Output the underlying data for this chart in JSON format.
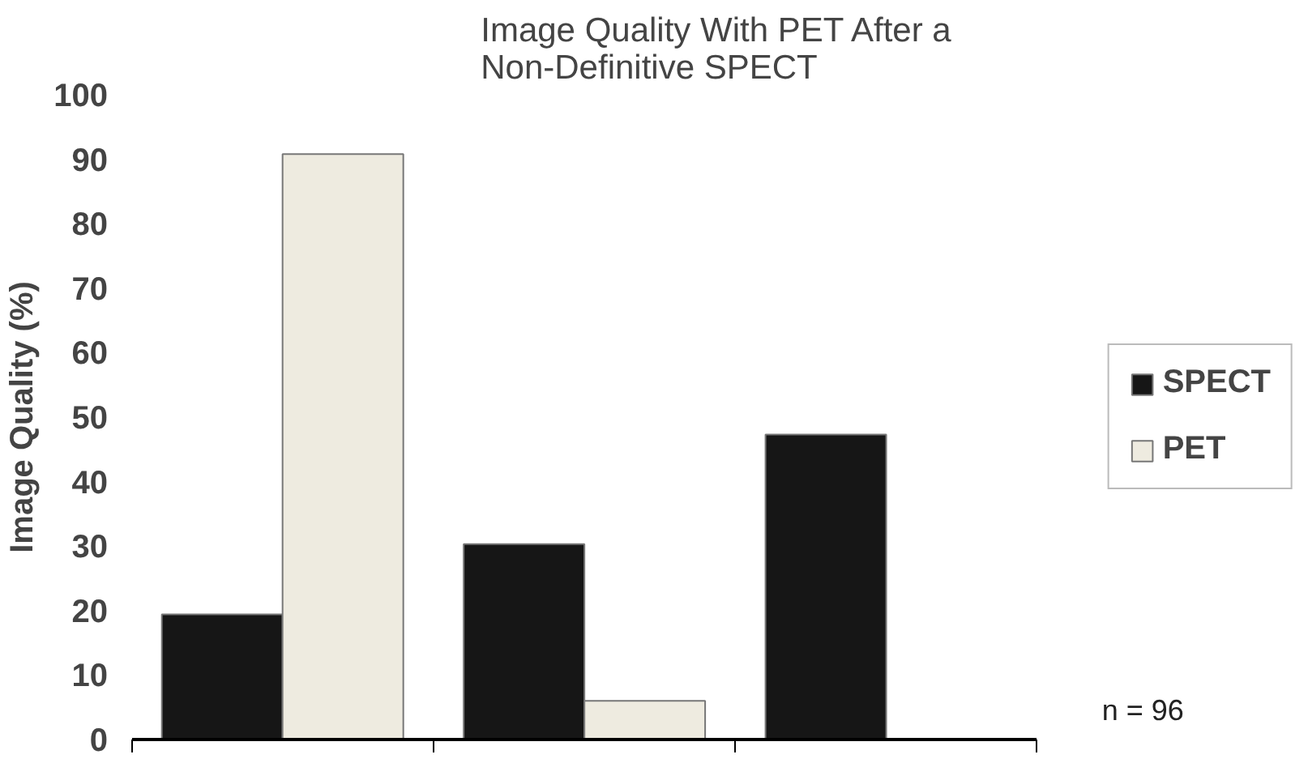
{
  "chart_data": {
    "type": "bar",
    "title": "Image Quality With PET After a\nNon-Definitive SPECT",
    "ylabel": "Image Quality (%)",
    "categories": [
      null,
      null,
      null
    ],
    "series": [
      {
        "name": "SPECT",
        "color": "#161616",
        "values": [
          19.4,
          30.3,
          47.3
        ]
      },
      {
        "name": "PET",
        "color": "#eeebe0",
        "values": [
          90.8,
          6.0,
          null
        ]
      }
    ],
    "ylim": [
      0,
      100
    ],
    "yticks": [
      0,
      10,
      20,
      30,
      40,
      50,
      60,
      70,
      80,
      90,
      100
    ],
    "grid": false,
    "legend": "right",
    "annotations": [
      "n = 96"
    ]
  }
}
